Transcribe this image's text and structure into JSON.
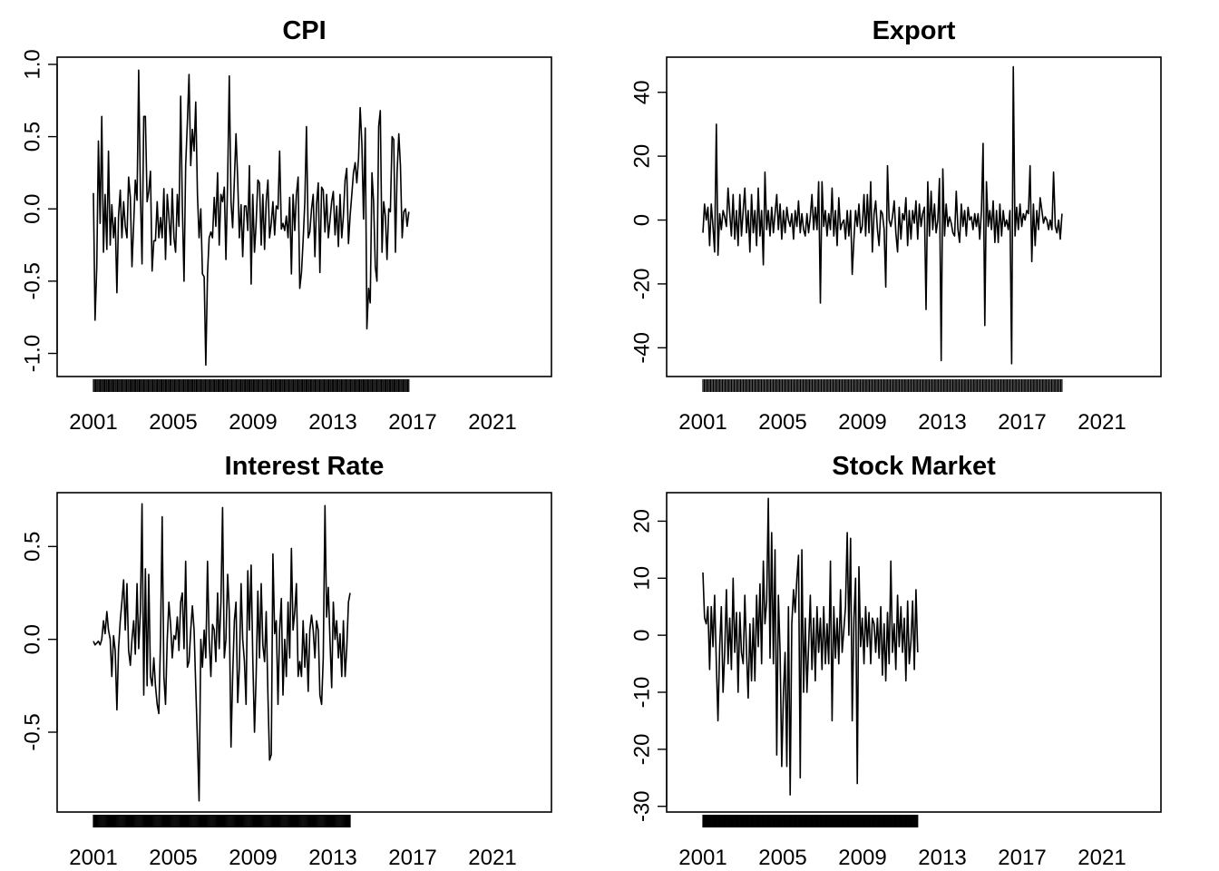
{
  "chart_data": [
    {
      "type": "line",
      "title": "CPI",
      "xlabel": "",
      "ylabel": "",
      "x_ticks": [
        "2001",
        "2005",
        "2009",
        "2013",
        "2017",
        "2021"
      ],
      "y_ticks": [
        "-1.0",
        "-0.5",
        "0.0",
        "0.5",
        "1.0"
      ],
      "ylim": [
        -1.16,
        1.05
      ],
      "x_start": 2000.0,
      "x_step": 0.08333,
      "grid": false,
      "values": [
        0.11,
        -0.77,
        -0.4,
        0.47,
        -0.1,
        0.64,
        -0.3,
        0.1,
        -0.28,
        0.4,
        -0.25,
        0.03,
        -0.2,
        -0.06,
        -0.58,
        -0.05,
        0.13,
        -0.2,
        0.05,
        -0.12,
        -0.2,
        0.22,
        0.08,
        -0.4,
        -0.1,
        0.2,
        0.06,
        0.96,
        0.12,
        -0.38,
        0.64,
        0.64,
        0.05,
        0.12,
        0.26,
        -0.43,
        -0.22,
        -0.22,
        0.05,
        -0.2,
        -0.06,
        -0.2,
        0.14,
        -0.35,
        0.1,
        -0.05,
        -0.25,
        0.14,
        -0.2,
        -0.3,
        0.1,
        -0.12,
        0.78,
        0.03,
        -0.5,
        0.3,
        0.6,
        0.93,
        0.3,
        0.55,
        0.4,
        0.74,
        0.1,
        -0.2,
        0.0,
        -0.45,
        -0.47,
        -1.08,
        -0.45,
        -0.2,
        -0.16,
        -0.2,
        0.08,
        -0.12,
        0.25,
        -0.25,
        0.1,
        0.05,
        0.15,
        -0.35,
        0.2,
        0.92,
        0.05,
        -0.13,
        0.2,
        0.52,
        0.2,
        -0.2,
        0.03,
        -0.33,
        0.02,
        0.02,
        -0.15,
        0.3,
        -0.52,
        0.1,
        -0.3,
        -0.1,
        0.2,
        0.18,
        -0.25,
        0.1,
        -0.28,
        0.05,
        0.2,
        -0.2,
        -0.1,
        0.05,
        -0.18,
        0.02,
        0.0,
        0.4,
        -0.14,
        -0.1,
        -0.15,
        -0.05,
        -0.2,
        0.08,
        -0.45,
        0.1,
        -0.15,
        0.1,
        0.22,
        -0.55,
        -0.44,
        -0.22,
        0.05,
        0.57,
        -0.2,
        -0.16,
        0.0,
        0.1,
        -0.33,
        0.03,
        0.18,
        -0.44,
        0.15,
        0.13,
        -0.16,
        0.1,
        -0.2,
        -0.08,
        0.05,
        0.12,
        -0.18,
        0.02,
        -0.26,
        0.1,
        -0.2,
        -0.05,
        0.2,
        0.28,
        -0.24,
        -0.05,
        0.1,
        0.25,
        0.32,
        0.18,
        0.35,
        0.7,
        0.45,
        -0.07,
        0.56,
        -0.83,
        -0.55,
        -0.65,
        0.25,
        0.05,
        -0.4,
        -0.5,
        0.57,
        0.68,
        -0.3,
        0.05,
        -0.05,
        -0.35,
        0.0,
        -0.02,
        0.5,
        0.48,
        -0.3,
        0.25,
        0.52,
        0.3,
        -0.2,
        -0.02,
        0.0,
        -0.12,
        -0.02
      ]
    },
    {
      "type": "line",
      "title": "Export",
      "xlabel": "",
      "ylabel": "",
      "x_ticks": [
        "2001",
        "2005",
        "2009",
        "2013",
        "2017",
        "2021"
      ],
      "y_ticks": [
        "-40",
        "-20",
        "0",
        "20",
        "40"
      ],
      "ylim": [
        -49,
        51
      ],
      "x_start": 2000.0,
      "x_step": 0.08333,
      "grid": false,
      "values": [
        -4,
        5,
        0,
        4,
        -8,
        5,
        -2,
        -10,
        30,
        -11,
        2,
        -3,
        3,
        1,
        -2,
        10,
        2,
        -5,
        8,
        -6,
        3,
        -8,
        8,
        -5,
        3,
        10,
        -4,
        3,
        -10,
        8,
        -4,
        3,
        -8,
        10,
        -5,
        3,
        -14,
        15,
        -3,
        3,
        -5,
        4,
        -4,
        2,
        8,
        -3,
        5,
        -6,
        3,
        -4,
        4,
        0,
        -2,
        2,
        -6,
        3,
        -2,
        6,
        -4,
        2,
        -3,
        -5,
        2,
        -4,
        1,
        8,
        -3,
        4,
        -3,
        12,
        -26,
        12,
        -2,
        3,
        -5,
        2,
        -3,
        10,
        -5,
        3,
        -8,
        7,
        -3,
        -1,
        0,
        -6,
        3,
        -5,
        3,
        -17,
        -6,
        3,
        -2,
        5,
        -4,
        -2,
        8,
        -5,
        8,
        -4,
        12,
        -10,
        2,
        6,
        -3,
        -8,
        3,
        2,
        -3,
        -21,
        17,
        0,
        -2,
        1,
        6,
        -4,
        -10,
        4,
        -6,
        2,
        0,
        7,
        -8,
        3,
        -6,
        3,
        -1,
        6,
        -6,
        5,
        -2,
        2,
        4,
        -28,
        12,
        -5,
        9,
        -3,
        5,
        -4,
        0,
        13,
        -44,
        16,
        -5,
        5,
        -2,
        1,
        -1,
        -4,
        -5,
        9,
        -3,
        -7,
        5,
        -2,
        3,
        -5,
        4,
        0,
        1,
        -3,
        2,
        -2,
        2,
        -6,
        3,
        24,
        -33,
        12,
        -2,
        3,
        -3,
        6,
        -7,
        3,
        -7,
        5,
        -5,
        3,
        -2,
        0,
        -3,
        3,
        -45,
        48,
        -5,
        4,
        -3,
        5,
        -2,
        2,
        0,
        3,
        2,
        17,
        -13,
        5,
        -8,
        3,
        -3,
        7,
        3,
        -1,
        1,
        0,
        -3,
        0,
        -3,
        15,
        -2,
        -4,
        0,
        -6,
        2
      ]
    },
    {
      "type": "line",
      "title": "Interest Rate",
      "xlabel": "",
      "ylabel": "",
      "x_ticks": [
        "2001",
        "2005",
        "2009",
        "2013",
        "2017",
        "2021"
      ],
      "y_ticks": [
        "-0.5",
        "0.0",
        "0.5"
      ],
      "ylim": [
        -0.93,
        0.79
      ],
      "x_start": 2000.0,
      "x_step": 0.08333,
      "grid": false,
      "values": [
        -0.01,
        -0.03,
        -0.02,
        -0.01,
        -0.03,
        0.0,
        0.1,
        0.03,
        0.15,
        0.05,
        0.0,
        -0.2,
        0.02,
        -0.06,
        -0.38,
        -0.05,
        0.1,
        0.2,
        0.32,
        0.05,
        0.3,
        -0.06,
        -0.14,
        0.0,
        0.1,
        -0.08,
        0.3,
        -0.05,
        0.15,
        0.73,
        -0.3,
        0.38,
        -0.25,
        0.35,
        -0.2,
        -0.25,
        -0.1,
        -0.25,
        -0.35,
        -0.4,
        0.0,
        0.66,
        -0.2,
        -0.35,
        0.0,
        0.2,
        0.08,
        -0.1,
        0.02,
        0.0,
        0.12,
        -0.06,
        0.2,
        0.25,
        -0.05,
        0.42,
        -0.15,
        -0.12,
        0.05,
        0.18,
        0.05,
        -0.25,
        -0.55,
        -0.87,
        0.0,
        -0.15,
        0.05,
        -0.1,
        0.42,
        0.0,
        -0.2,
        0.08,
        0.05,
        -0.12,
        0.25,
        -0.05,
        0.2,
        0.71,
        -0.1,
        0.0,
        0.35,
        0.15,
        -0.58,
        -0.2,
        0.1,
        0.2,
        -0.34,
        -0.15,
        0.3,
        0.0,
        -0.12,
        -0.35,
        0.37,
        0.05,
        0.4,
        -0.1,
        -0.5,
        -0.2,
        0.26,
        -0.1,
        0.3,
        -0.03,
        -0.12,
        0.15,
        -0.3,
        -0.65,
        -0.62,
        0.46,
        0.03,
        0.1,
        -0.35,
        0.05,
        0.22,
        -0.3,
        0.0,
        -0.2,
        0.2,
        -0.1,
        0.49,
        0.05,
        0.15,
        0.3,
        -0.2,
        -0.12,
        -0.2,
        0.1,
        -0.15,
        0.03,
        -0.28,
        0.05,
        0.13,
        0.05,
        -0.1,
        0.1,
        0.05,
        -0.3,
        -0.35,
        -0.1,
        0.72,
        0.12,
        0.28,
        0.0,
        -0.26,
        0.2,
        0.0,
        0.1,
        -0.1,
        0.03,
        -0.2,
        0.1,
        -0.2,
        -0.05,
        0.2,
        0.25
      ]
    },
    {
      "type": "line",
      "title": "Stock Market",
      "xlabel": "",
      "ylabel": "",
      "x_ticks": [
        "2001",
        "2005",
        "2009",
        "2013",
        "2017",
        "2021"
      ],
      "y_ticks": [
        "-30",
        "-20",
        "-10",
        "0",
        "10",
        "20"
      ],
      "ylim": [
        -31,
        25
      ],
      "x_start": 2000.0,
      "x_step": 0.08333,
      "grid": false,
      "values": [
        11,
        3,
        2,
        5,
        -6,
        5,
        -2,
        7,
        -5,
        -15,
        -2,
        5,
        -10,
        -3,
        8,
        -5,
        3,
        -6,
        10,
        -3,
        4,
        -10,
        4,
        -3,
        -5,
        7,
        -3,
        -11,
        2,
        -8,
        3,
        -8,
        7,
        -2,
        9,
        -5,
        13,
        2,
        6,
        24,
        -4,
        18,
        -5,
        15,
        -21,
        7,
        -3,
        -23,
        -10,
        -3,
        -23,
        5,
        -28,
        2,
        8,
        4,
        10,
        14,
        -25,
        15,
        -10,
        3,
        -10,
        -2,
        7,
        -6,
        3,
        -8,
        5,
        -3,
        3,
        -6,
        5,
        -5,
        2,
        -5,
        13,
        -15,
        5,
        -4,
        3,
        -5,
        8,
        -3,
        1,
        5,
        18,
        0,
        17,
        -15,
        3,
        10,
        -26,
        12,
        -2,
        3,
        -5,
        5,
        -2,
        4,
        -5,
        3,
        2,
        -3,
        3,
        -4,
        5,
        -7,
        2,
        -8,
        4,
        -5,
        13,
        -3,
        2,
        -6,
        7,
        -2,
        5,
        -3,
        3,
        -8,
        6,
        -5,
        -1,
        6,
        -6,
        8,
        -3
      ]
    }
  ]
}
